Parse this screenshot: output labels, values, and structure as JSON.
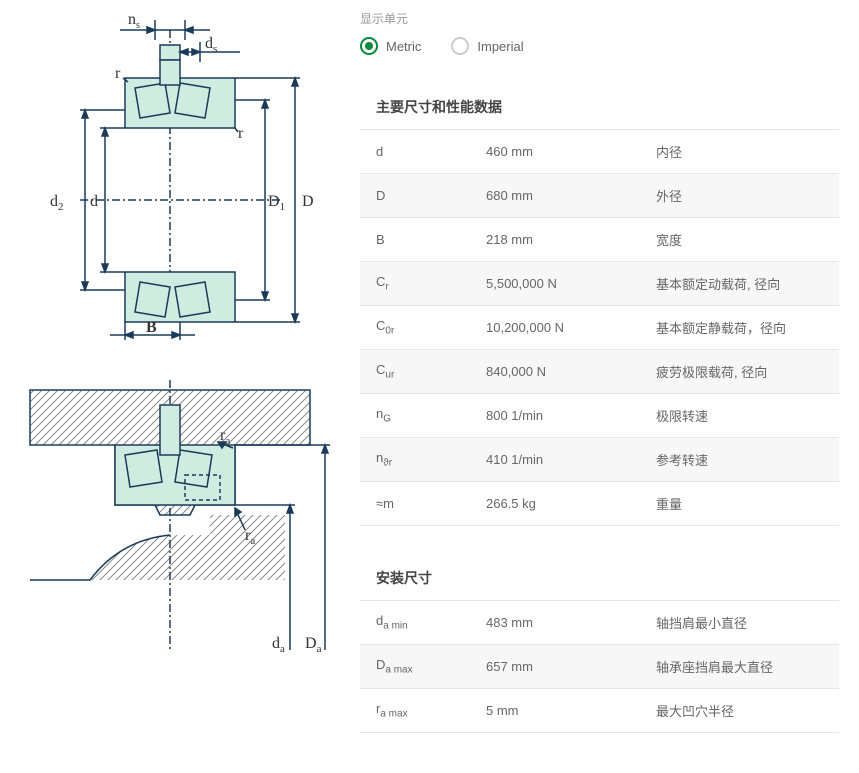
{
  "units": {
    "label": "显示单元",
    "metric": "Metric",
    "imperial": "Imperial"
  },
  "section1": {
    "title": "主要尺寸和性能数据",
    "rows": [
      {
        "sym": "d",
        "sub": "",
        "val": "460 mm",
        "desc": "内径"
      },
      {
        "sym": "D",
        "sub": "",
        "val": "680 mm",
        "desc": "外径"
      },
      {
        "sym": "B",
        "sub": "",
        "val": "218 mm",
        "desc": "宽度"
      },
      {
        "sym": "C",
        "sub": "r",
        "val": "5,500,000 N",
        "desc": "基本额定动载荷, 径向"
      },
      {
        "sym": "C",
        "sub": "0r",
        "val": "10,200,000 N",
        "desc": "基本额定静载荷，径向"
      },
      {
        "sym": "C",
        "sub": "ur",
        "val": "840,000 N",
        "desc": "疲劳极限载荷, 径向"
      },
      {
        "sym": "n",
        "sub": "G",
        "val": "800 1/min",
        "desc": "极限转速"
      },
      {
        "sym": "n",
        "sub": "ϑr",
        "val": "410 1/min",
        "desc": "参考转速"
      },
      {
        "sym": "≈m",
        "sub": "",
        "val": "266.5 kg",
        "desc": "重量"
      }
    ]
  },
  "section2": {
    "title": "安装尺寸",
    "rows": [
      {
        "sym": "d",
        "sub": "a min",
        "val": "483 mm",
        "desc": "轴挡肩最小直径"
      },
      {
        "sym": "D",
        "sub": "a max",
        "val": "657 mm",
        "desc": "轴承座挡肩最大直径"
      },
      {
        "sym": "r",
        "sub": "a max",
        "val": "5 mm",
        "desc": "最大凹穴半径"
      }
    ]
  },
  "diagram_labels": {
    "ns": "n",
    "ns_sub": "s",
    "ds": "d",
    "ds_sub": "s",
    "r1": "r",
    "r2": "r",
    "d2": "d",
    "d2_sub": "2",
    "d": "d",
    "D1": "D",
    "D1_sub": "1",
    "D": "D",
    "B": "B",
    "ra1": "r",
    "ra1_sub": "a",
    "ra2": "r",
    "ra2_sub": "a",
    "da": "d",
    "da_sub": "a",
    "Da": "D",
    "Da_sub": "a"
  },
  "colors": {
    "accent": "#0a8a3a",
    "diagram_fill": "#d0ebe0",
    "diagram_stroke": "#1a3a5a",
    "hatch": "#888"
  }
}
